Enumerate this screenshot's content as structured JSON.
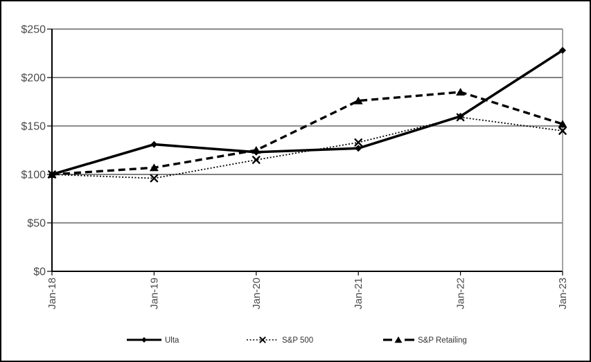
{
  "chart_data": {
    "type": "line",
    "title": "",
    "x_categories": [
      "Jan-18",
      "Jan-19",
      "Jan-20",
      "Jan-21",
      "Jan-22",
      "Jan-23"
    ],
    "y_tick_values": [
      0,
      50,
      100,
      150,
      200,
      250
    ],
    "y_tick_labels": [
      "$0",
      "$50",
      "$100",
      "$150",
      "$200",
      "$250"
    ],
    "y_range": [
      0,
      250
    ],
    "grid": "horizontal",
    "legend_position": "bottom",
    "series": [
      {
        "name": "Ulta",
        "marker": "diamond",
        "line_style": "solid",
        "color": "#000000",
        "values": [
          100,
          131,
          123,
          127,
          160,
          228
        ]
      },
      {
        "name": "S&P 500",
        "marker": "x",
        "line_style": "dotted",
        "color": "#000000",
        "values": [
          100,
          96,
          115,
          133,
          159,
          145
        ]
      },
      {
        "name": "S&P Retailing",
        "marker": "triangle",
        "line_style": "dashed",
        "color": "#000000",
        "values": [
          100,
          107,
          125,
          176,
          185,
          152
        ]
      }
    ]
  },
  "colors": {
    "background": "#ffffff",
    "frame_border": "#000000",
    "axis": "#000000",
    "grid_gray": "#8c8c8c",
    "grid_black": "#000000",
    "series_color": "#000000",
    "tick_text": "#4a4a4a",
    "legend_text": "#333333"
  }
}
